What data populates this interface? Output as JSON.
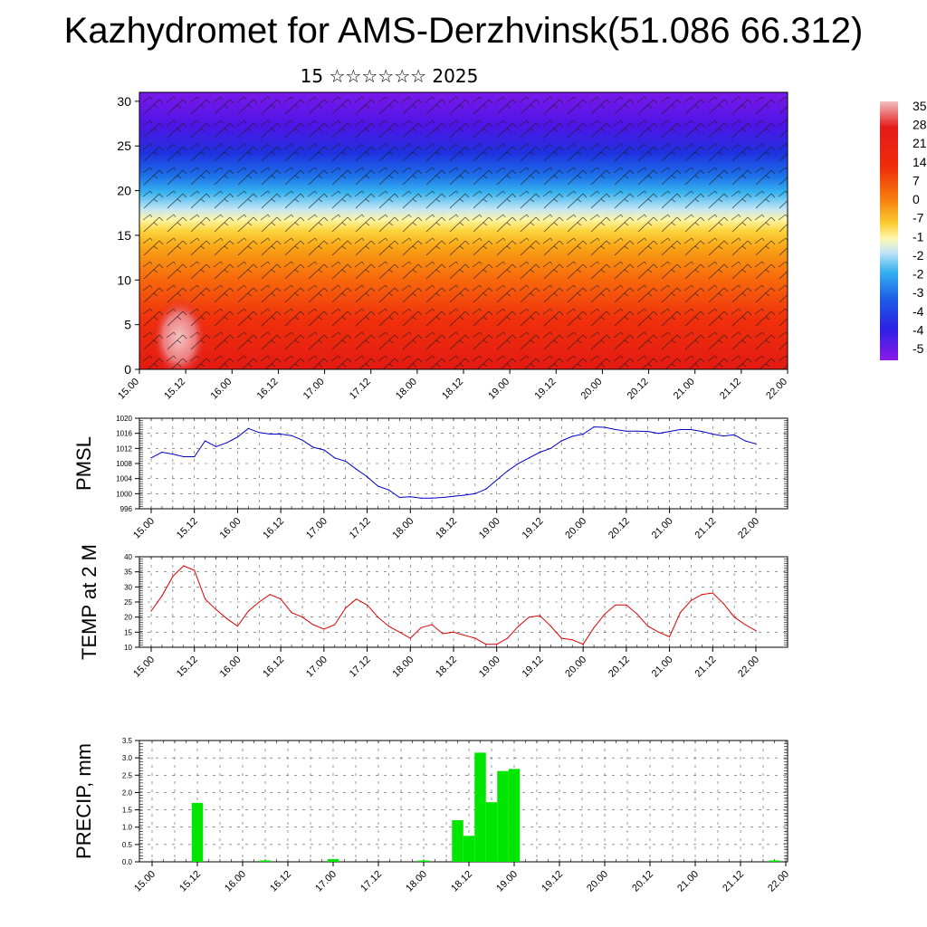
{
  "header": {
    "title": "Kazhydromet for AMS-Derzhvinsk(51.086 66.312)",
    "subtitle": "15 ☆☆☆☆☆☆ 2025"
  },
  "time_labels": [
    "15.00",
    "15.12",
    "16.00",
    "16.12",
    "17.00",
    "17.12",
    "18.00",
    "18.12",
    "19.00",
    "19.12",
    "20.00",
    "20.12",
    "21.00",
    "21.12",
    "22.00"
  ],
  "chart_data": [
    {
      "type": "heatmap",
      "name": "upper-air",
      "y_ticks": [
        0,
        5,
        10,
        15,
        20,
        25,
        30
      ],
      "ylim": [
        0,
        31
      ],
      "x_tick_labels": [
        "15.00",
        "15.12",
        "16.00",
        "16.12",
        "17.00",
        "17.12",
        "18.00",
        "18.12",
        "19.00",
        "19.12",
        "20.00",
        "20.12",
        "21.00",
        "21.12",
        "22.00"
      ],
      "colorbar_labels": [
        "35",
        "28",
        "21",
        "14",
        "7",
        "0",
        "-7",
        "-1",
        "-2",
        "-2",
        "-3",
        "-4",
        "-4",
        "-5"
      ],
      "colorbar_colors": [
        "#f2b8b8",
        "#e51a1a",
        "#f0240a",
        "#f55a0a",
        "#f7960f",
        "#fbc326",
        "#fef58c",
        "#cfe8f6",
        "#3cb6f0",
        "#1e82ec",
        "#1b4fe0",
        "#2a22e6",
        "#5a12e8",
        "#8c1aea"
      ],
      "wind_barbs": true
    },
    {
      "type": "line",
      "name": "PMSL",
      "ylabel": "PMSL",
      "y_ticks": [
        996,
        1000,
        1004,
        1008,
        1012,
        1016,
        1020
      ],
      "ylim": [
        996,
        1020
      ],
      "color": "#0000cc",
      "x": [
        "15.00",
        "15.03",
        "15.06",
        "15.09",
        "15.12",
        "15.15",
        "15.18",
        "15.21",
        "16.00",
        "16.03",
        "16.06",
        "16.09",
        "16.12",
        "16.15",
        "16.18",
        "16.21",
        "17.00",
        "17.03",
        "17.06",
        "17.09",
        "17.12",
        "17.15",
        "17.18",
        "17.21",
        "18.00",
        "18.03",
        "18.06",
        "18.09",
        "18.12",
        "18.15",
        "18.18",
        "18.21",
        "19.00",
        "19.03",
        "19.06",
        "19.09",
        "19.12",
        "19.15",
        "19.18",
        "19.21",
        "20.00",
        "20.03",
        "20.06",
        "20.09",
        "20.12",
        "20.15",
        "20.18",
        "20.21",
        "21.00",
        "21.03",
        "21.06",
        "21.09",
        "21.12",
        "21.15",
        "21.18",
        "21.21",
        "22.00"
      ],
      "values": [
        1009.5,
        1011,
        1010.5,
        1009.8,
        1009.8,
        1014,
        1012.5,
        1013.5,
        1015,
        1017.3,
        1016.2,
        1015.8,
        1015.8,
        1015.4,
        1014.2,
        1012.3,
        1011.6,
        1009.5,
        1008.6,
        1006.5,
        1004.5,
        1002,
        1001,
        999,
        999.2,
        998.8,
        998.8,
        999,
        999.3,
        999.6,
        1000,
        1001.2,
        1003.6,
        1006,
        1008,
        1009.5,
        1011,
        1012,
        1014,
        1015.2,
        1015.8,
        1017.7,
        1017.6,
        1017,
        1016.6,
        1016.6,
        1016.5,
        1016,
        1016.5,
        1017,
        1017,
        1016.5,
        1015.8,
        1015.3,
        1015.6,
        1014,
        1013.2
      ]
    },
    {
      "type": "line",
      "name": "TEMP",
      "ylabel": "TEMP at 2 M",
      "y_ticks": [
        10,
        15,
        20,
        25,
        30,
        35,
        40
      ],
      "ylim": [
        10,
        40
      ],
      "color": "#dd0000",
      "x": [
        "15.00",
        "15.03",
        "15.06",
        "15.09",
        "15.12",
        "15.15",
        "15.18",
        "15.21",
        "16.00",
        "16.03",
        "16.06",
        "16.09",
        "16.12",
        "16.15",
        "16.18",
        "16.21",
        "17.00",
        "17.03",
        "17.06",
        "17.09",
        "17.12",
        "17.15",
        "17.18",
        "17.21",
        "18.00",
        "18.03",
        "18.06",
        "18.09",
        "18.12",
        "18.15",
        "18.18",
        "18.21",
        "19.00",
        "19.03",
        "19.06",
        "19.09",
        "19.12",
        "19.15",
        "19.18",
        "19.21",
        "20.00",
        "20.03",
        "20.06",
        "20.09",
        "20.12",
        "20.15",
        "20.18",
        "20.21",
        "21.00",
        "21.03",
        "21.06",
        "21.09",
        "21.12",
        "21.15",
        "21.18",
        "21.21",
        "22.00"
      ],
      "values": [
        22,
        27,
        33.5,
        37,
        35.5,
        26,
        22.5,
        19.5,
        17,
        22,
        25,
        27.5,
        26,
        21.5,
        20,
        17.5,
        16,
        17.5,
        23,
        26,
        24,
        20,
        17,
        15,
        13,
        16.5,
        17.5,
        14.5,
        15,
        14,
        13,
        11,
        11,
        13,
        17,
        20,
        20.5,
        17,
        13,
        12.5,
        11,
        16.5,
        21,
        24,
        24,
        21,
        17,
        15,
        13.5,
        21.5,
        25.5,
        27.5,
        28,
        24.5,
        20,
        17.5,
        15.5
      ]
    },
    {
      "type": "bar",
      "name": "PRECIP",
      "ylabel": "PRECIP, mm",
      "y_ticks": [
        0.0,
        0.5,
        1.0,
        1.5,
        2.0,
        2.5,
        3.0,
        3.5
      ],
      "ylim": [
        0,
        3.5
      ],
      "color": "#00e600",
      "x": [
        "15.12",
        "16.06",
        "17.00",
        "18.00",
        "18.09",
        "18.12",
        "18.15",
        "18.18",
        "18.21",
        "19.00",
        "21.21"
      ],
      "values": [
        1.7,
        0.04,
        0.08,
        0.04,
        1.2,
        0.75,
        3.15,
        1.72,
        2.62,
        2.68,
        0.04
      ]
    }
  ]
}
